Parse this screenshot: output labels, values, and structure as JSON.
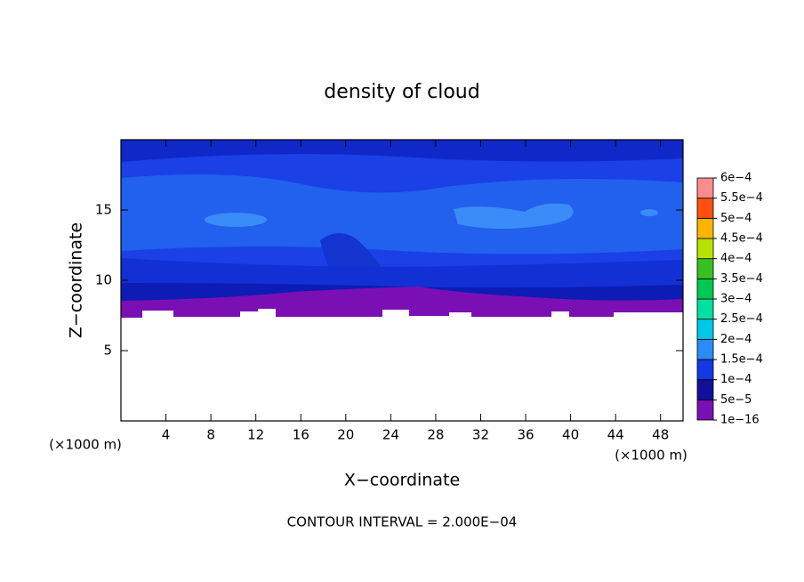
{
  "chart_data": {
    "type": "contour",
    "title": "density of cloud",
    "x_label": "X−coordinate",
    "y_label": "Z−coordinate",
    "unit_label": "(×1000 m)",
    "note": "CONTOUR INTERVAL = 2.000E−04",
    "xlim": [
      0,
      50
    ],
    "xticks": [
      4,
      8,
      12,
      16,
      20,
      24,
      28,
      32,
      36,
      40,
      44,
      48
    ],
    "ylim": [
      0,
      20
    ],
    "yticks": [
      5,
      10,
      15
    ],
    "colorbar": {
      "levels": [
        {
          "value": 1e-16,
          "label": "1e−16"
        },
        {
          "value": 5e-05,
          "label": "5e−5"
        },
        {
          "value": 0.0001,
          "label": "1e−4"
        },
        {
          "value": 0.00015,
          "label": "1.5e−4"
        },
        {
          "value": 0.0002,
          "label": "2e−4"
        },
        {
          "value": 0.00025,
          "label": "2.5e−4"
        },
        {
          "value": 0.0003,
          "label": "3e−4"
        },
        {
          "value": 0.00035,
          "label": "3.5e−4"
        },
        {
          "value": 0.0004,
          "label": "4e−4"
        },
        {
          "value": 0.00045,
          "label": "4.5e−4"
        },
        {
          "value": 0.0005,
          "label": "5e−4"
        },
        {
          "value": 0.00055,
          "label": "5.5e−4"
        },
        {
          "value": 0.0006,
          "label": "6e−4"
        }
      ],
      "colors": [
        "#7a10b4",
        "#10109a",
        "#1438e4",
        "#2a8cf8",
        "#00c8e8",
        "#00e0a0",
        "#00c850",
        "#38c020",
        "#b8e000",
        "#ffb400",
        "#ff5010",
        "#ff8c8c"
      ]
    }
  }
}
